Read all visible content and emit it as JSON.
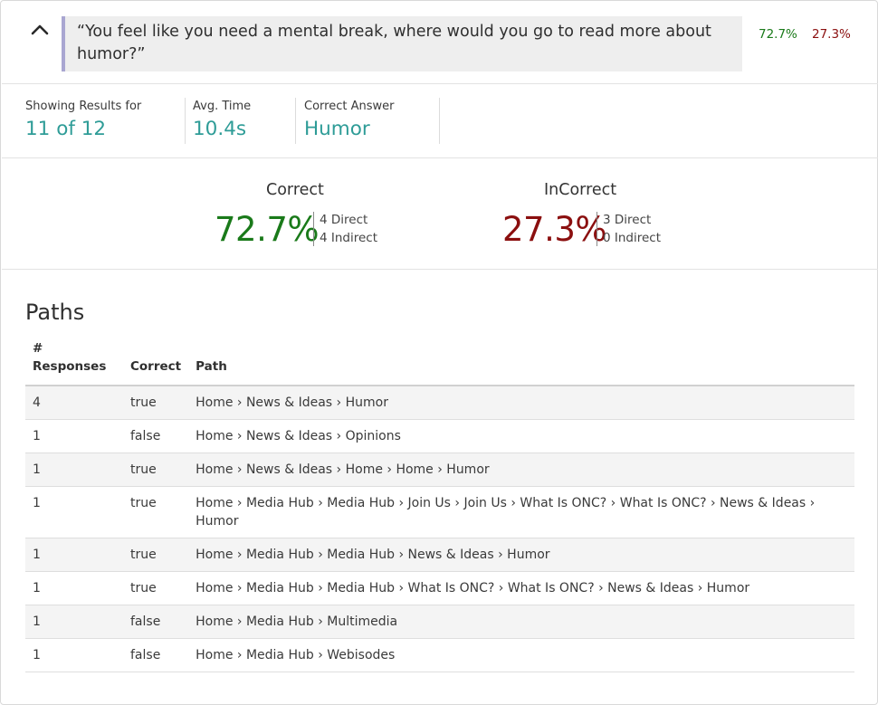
{
  "question": {
    "text": "“You feel like you need a mental break, where would you go to read more about humor?”",
    "correct_pct": "72.7%",
    "incorrect_pct": "27.3%"
  },
  "stats": [
    {
      "label": "Showing Results for",
      "value": "11 of 12"
    },
    {
      "label": "Avg. Time",
      "value": "10.4s"
    },
    {
      "label": "Correct Answer",
      "value": "Humor"
    }
  ],
  "summary": {
    "correct": {
      "title": "Correct",
      "pct": "72.7%",
      "direct": "4 Direct",
      "indirect": "4 Indirect"
    },
    "incorrect": {
      "title": "InCorrect",
      "pct": "27.3%",
      "direct": "3 Direct",
      "indirect": "0 Indirect"
    }
  },
  "paths": {
    "title": "Paths",
    "headers": {
      "responses": "# Responses",
      "correct": "Correct",
      "path": "Path"
    },
    "rows": [
      {
        "n": "4",
        "correct": "true",
        "path": "Home › News & Ideas › Humor"
      },
      {
        "n": "1",
        "correct": "false",
        "path": "Home › News & Ideas › Opinions"
      },
      {
        "n": "1",
        "correct": "true",
        "path": "Home › News & Ideas › Home › Home › Humor"
      },
      {
        "n": "1",
        "correct": "true",
        "path": "Home › Media Hub › Media Hub › Join Us › Join Us › What Is ONC? › What Is ONC? › News & Ideas › Humor"
      },
      {
        "n": "1",
        "correct": "true",
        "path": "Home › Media Hub › Media Hub › News & Ideas › Humor"
      },
      {
        "n": "1",
        "correct": "true",
        "path": "Home › Media Hub › Media Hub › What Is ONC? › What Is ONC? › News & Ideas › Humor"
      },
      {
        "n": "1",
        "correct": "false",
        "path": "Home › Media Hub › Multimedia"
      },
      {
        "n": "1",
        "correct": "false",
        "path": "Home › Media Hub › Webisodes"
      }
    ]
  },
  "icons": {
    "collapse": "chevron-up-icon"
  },
  "colors": {
    "correct": "#1a7a1a",
    "incorrect": "#8b0f0f",
    "accent": "#2e9c97",
    "quote_bar": "#a9a6d1"
  }
}
